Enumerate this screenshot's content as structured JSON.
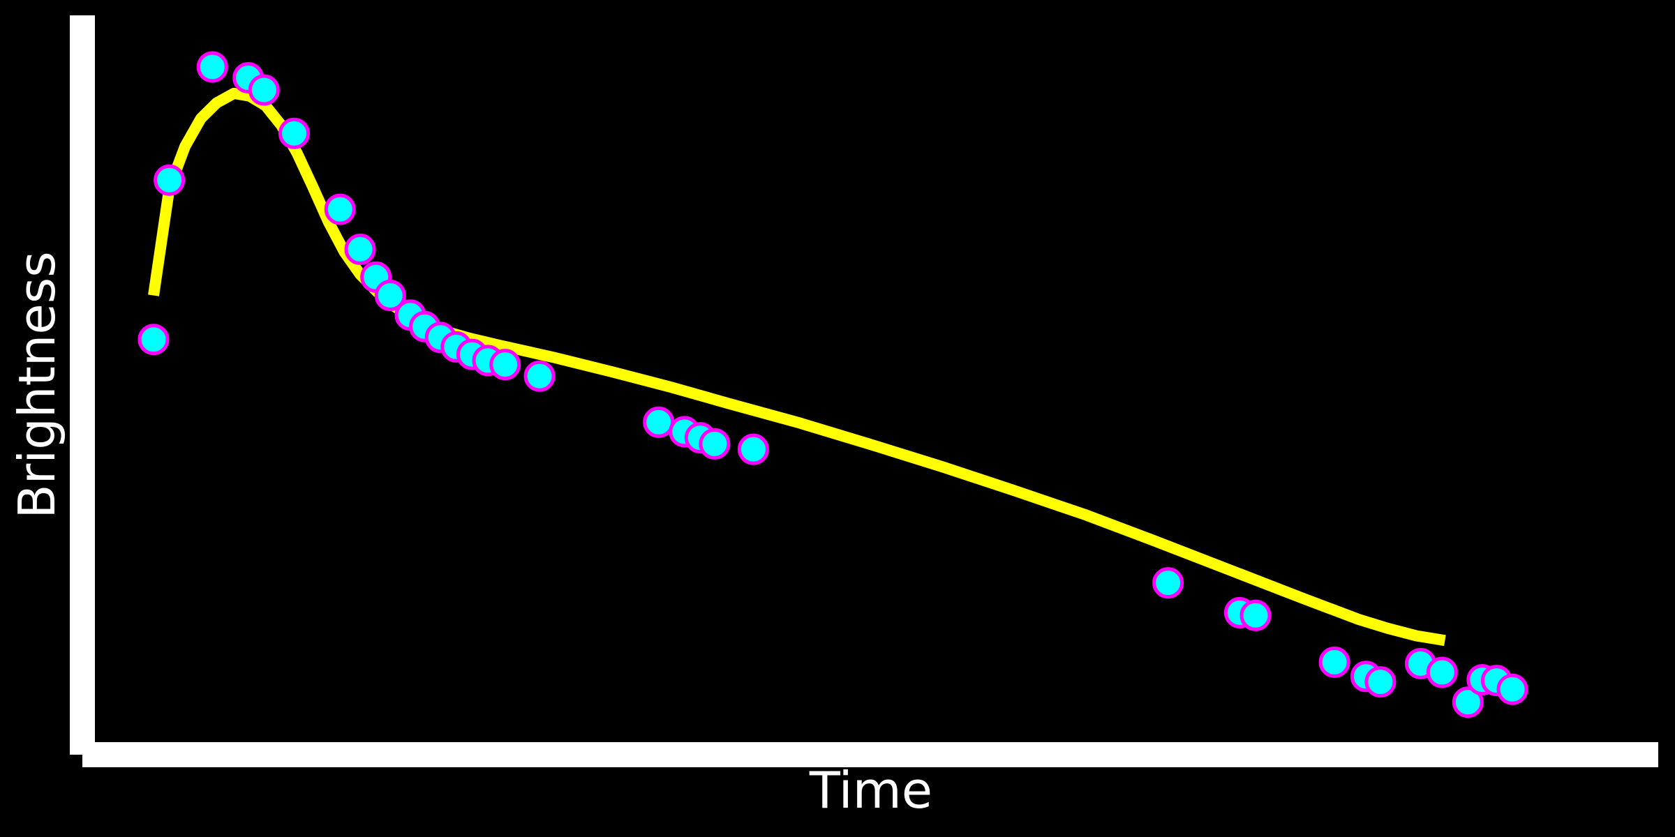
{
  "chart_data": {
    "type": "line",
    "title": "",
    "xlabel": "Time",
    "ylabel": "Brightness",
    "xlim": [
      0,
      100
    ],
    "ylim": [
      0,
      100
    ],
    "grid": false,
    "legend": "none",
    "tick_labels_shown": false,
    "colors": {
      "background": "#000000",
      "axes": "#ffffff",
      "line": "#ffff00",
      "marker_fill": "#00ffff",
      "marker_edge": "#ff00ff",
      "text": "#ffffff"
    },
    "series": [
      {
        "kind": "line",
        "x": [
          0,
          1.1,
          2.2,
          3.3,
          4.4,
          5.6,
          6.7,
          7.8,
          8.9,
          10.0,
          11.1,
          12.2,
          13.3,
          14.4,
          15.6,
          16.7,
          17.8,
          18.9,
          20,
          22,
          24,
          28,
          32,
          36,
          40,
          45,
          50,
          55,
          60,
          65,
          70,
          75,
          80,
          82,
          84,
          86,
          88,
          90
        ],
        "y": [
          62.6,
          78.4,
          84.6,
          88.7,
          91.0,
          92.4,
          92.0,
          90.6,
          87.7,
          83.6,
          78.6,
          73.4,
          69.0,
          65.7,
          63.1,
          61.1,
          59.6,
          58.4,
          57.5,
          56.3,
          55.3,
          53.4,
          51.3,
          49.1,
          46.7,
          43.8,
          40.6,
          37.3,
          33.8,
          30.2,
          26.2,
          22.1,
          18.0,
          16.4,
          14.8,
          13.5,
          12.4,
          11.7
        ]
      },
      {
        "kind": "scatter",
        "x": [
          0,
          1.1,
          4.1,
          6.6,
          7.7,
          9.8,
          13.0,
          14.4,
          15.5,
          16.5,
          17.9,
          18.9,
          20.0,
          21.1,
          22.2,
          23.3,
          24.5,
          26.9,
          35.2,
          37.0,
          38.1,
          39.1,
          41.8,
          70.7,
          75.7,
          76.8,
          82.3,
          84.5,
          85.5,
          88.3,
          89.8,
          91.6,
          92.6,
          93.6,
          94.7
        ],
        "y": [
          56.1,
          79.6,
          96.3,
          94.7,
          92.9,
          86.5,
          75.3,
          69.4,
          65.3,
          62.6,
          59.7,
          58.0,
          56.4,
          55.0,
          53.9,
          53.0,
          52.4,
          50.7,
          43.9,
          42.5,
          41.6,
          40.7,
          39.9,
          20.2,
          15.8,
          15.4,
          8.5,
          6.4,
          5.6,
          8.3,
          7.0,
          2.6,
          5.9,
          5.8,
          4.5
        ]
      }
    ]
  }
}
